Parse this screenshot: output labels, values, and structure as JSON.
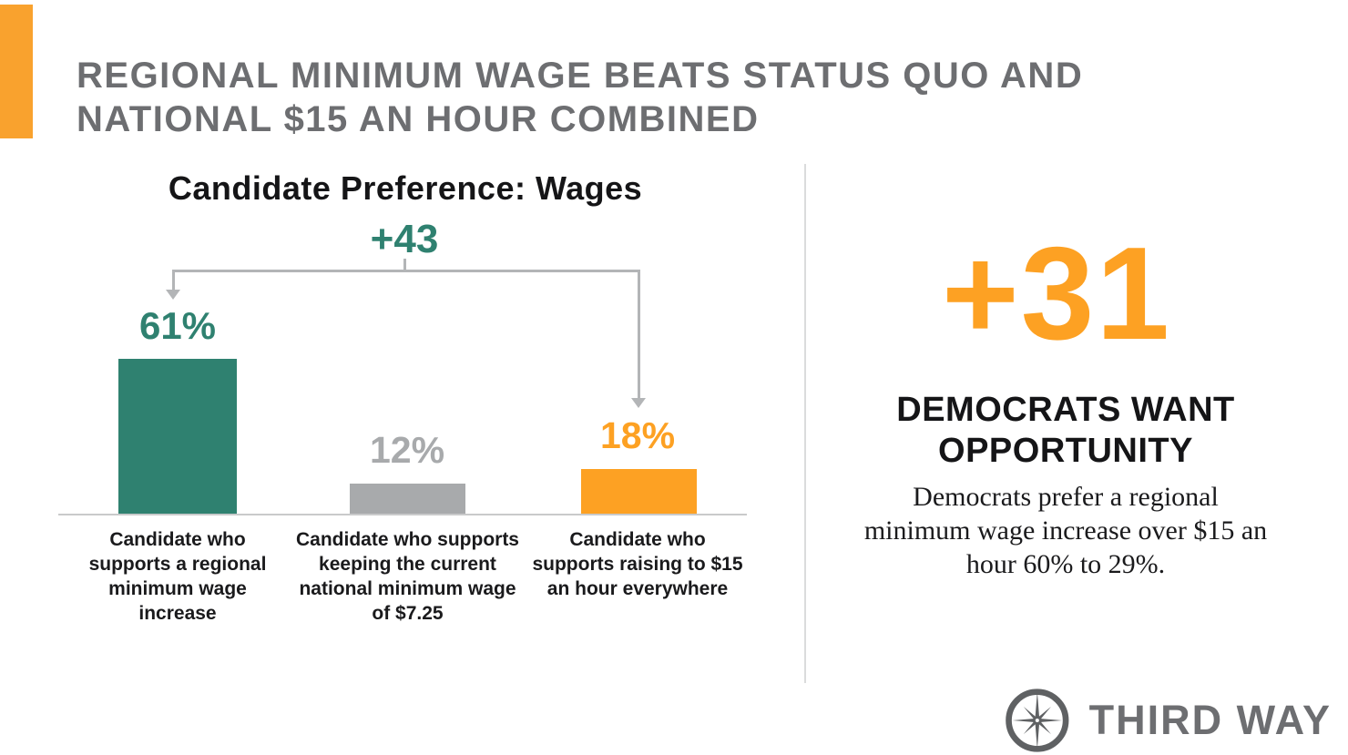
{
  "colors": {
    "orange": "#FDA123",
    "teal": "#2F8170",
    "bar_gray": "#A8AAAC",
    "title_gray": "#6d6e71",
    "bracket_gray": "#b3b5b7",
    "corner_orange": "#F9A22E",
    "logo_gray": "#5F6163"
  },
  "header": {
    "title_line1": "REGIONAL MINIMUM WAGE BEATS STATUS QUO AND",
    "title_line2": "NATIONAL $15 AN HOUR COMBINED"
  },
  "chart": {
    "title": "Candidate Preference: Wages",
    "bracket_label": "+43"
  },
  "chart_data": {
    "type": "bar",
    "title": "Candidate Preference: Wages",
    "categories": [
      "Candidate who supports a regional minimum wage increase",
      "Candidate who supports keeping the current national minimum wage of $7.25",
      "Candidate who supports raising to $15 an hour everywhere"
    ],
    "values": [
      61,
      12,
      18
    ],
    "value_labels": [
      "61%",
      "12%",
      "18%"
    ],
    "bar_colors": [
      "#2F8170",
      "#A8AAAC",
      "#FDA123"
    ],
    "value_label_colors": [
      "#2F8170",
      "#A8AAAC",
      "#FDA123"
    ],
    "annotation": {
      "text": "+43",
      "from_index": 0,
      "to_index": 2,
      "color": "#2F8170"
    },
    "ylim": [
      0,
      65
    ],
    "grid": false,
    "legend": false,
    "orientation": "vertical"
  },
  "right_panel": {
    "stat": "+31",
    "heading": "DEMOCRATS WANT OPPORTUNITY",
    "body": "Democrats prefer a regional minimum wage increase over $15 an hour 60% to 29%."
  },
  "footer": {
    "brand": "THIRD WAY",
    "logo_icon": "compass-star-icon"
  }
}
